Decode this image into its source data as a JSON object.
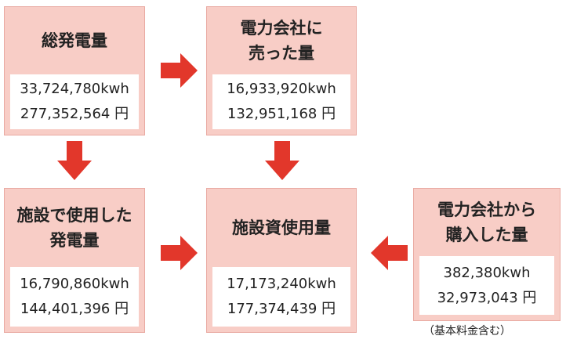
{
  "nodes": [
    {
      "label": [
        "総発電量"
      ],
      "kwh": "33,724,780kwh",
      "yen": "277,352,564 円"
    },
    {
      "label": [
        "電力会社に",
        "売った量"
      ],
      "kwh": "16,933,920kwh",
      "yen": "132,951,168 円"
    },
    {
      "label": [
        "施設で使用した",
        "発電量"
      ],
      "kwh": "16,790,860kwh",
      "yen": "144,401,396 円"
    },
    {
      "label": [
        "施設資使用量"
      ],
      "kwh": "17,173,240kwh",
      "yen": "177,374,439 円"
    },
    {
      "label": [
        "電力会社から",
        "購入した量"
      ],
      "kwh": "382,380kwh",
      "yen": "32,973,043 円"
    }
  ],
  "note": "（基本料金含む）"
}
